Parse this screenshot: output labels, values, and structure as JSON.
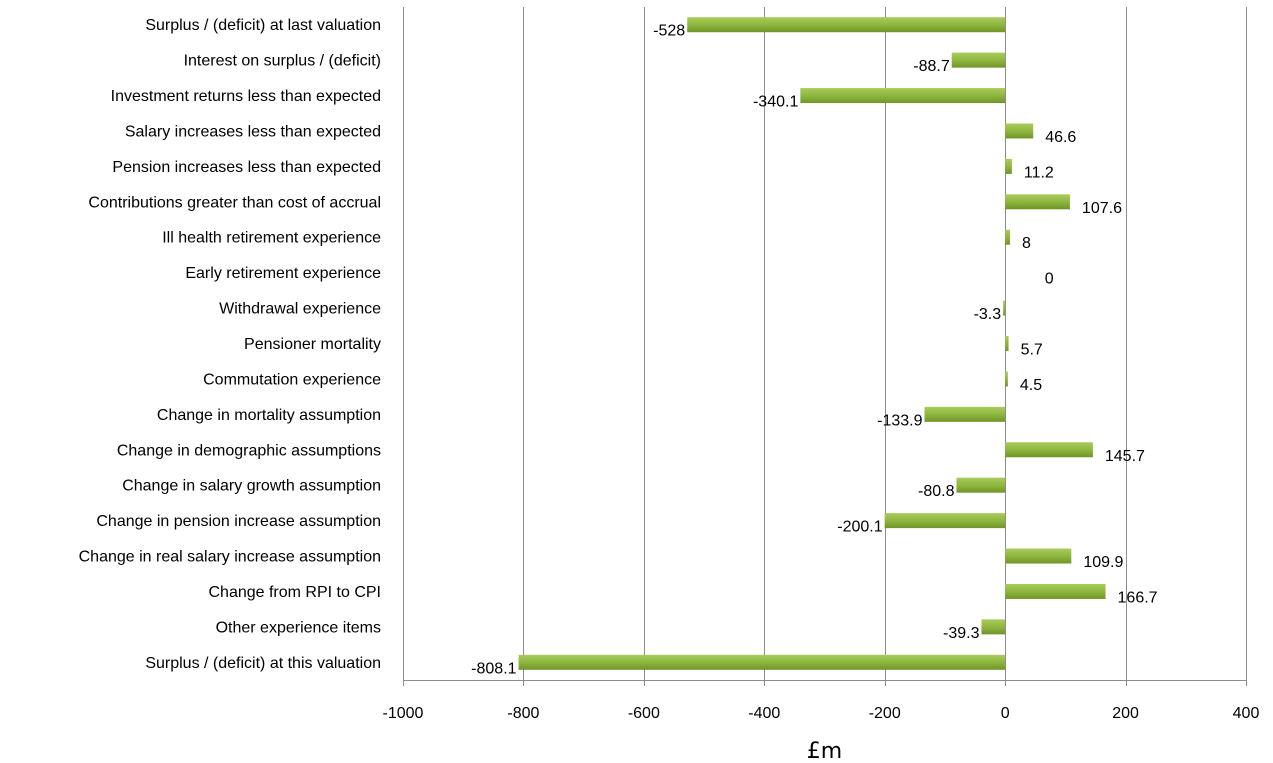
{
  "chart_data": {
    "type": "bar",
    "orientation": "horizontal",
    "categories": [
      "Surplus / (deficit) at last valuation",
      "Interest on surplus / (deficit)",
      "Investment returns less than expected",
      "Salary increases less than expected",
      "Pension increases less than expected",
      "Contributions greater than cost of accrual",
      "Ill health retirement experience",
      "Early retirement experience",
      "Withdrawal experience",
      "Pensioner mortality",
      "Commutation experience",
      "Change in mortality assumption",
      "Change in demographic assumptions",
      "Change in salary growth assumption",
      "Change in pension increase assumption",
      "Change in real salary increase assumption",
      "Change from RPI to CPI",
      "Other experience items",
      "Surplus / (deficit) at this valuation"
    ],
    "values": [
      -528,
      -88.7,
      -340.1,
      46.6,
      11.2,
      107.6,
      8,
      0,
      -3.3,
      5.7,
      4.5,
      -133.9,
      145.7,
      -80.8,
      -200.1,
      109.9,
      166.7,
      -39.3,
      -808.1
    ],
    "value_labels": [
      "-528",
      "-88.7",
      "-340.1",
      "46.6",
      "11.2",
      "107.6",
      "8",
      "0",
      "-3.3",
      "5.7",
      "4.5",
      "-133.9",
      "145.7",
      "-80.8",
      "-200.1",
      "109.9",
      "166.7",
      "-39.3",
      "-808.1"
    ],
    "xlim": [
      -1000,
      400
    ],
    "xticks": [
      -1000,
      -800,
      -600,
      -400,
      -200,
      0,
      200,
      400
    ],
    "xtick_labels": [
      "-1000",
      "-800",
      "-600",
      "-400",
      "-200",
      "0",
      "200",
      "400"
    ],
    "xlabel": "£m",
    "title": "",
    "grid": "vertical",
    "legend": "none",
    "bar_color": "#8cb43c",
    "bar_highlight": "#a9cc5c",
    "bar_shadow": "#6f9528",
    "grid_color": "#8c8c8c"
  }
}
